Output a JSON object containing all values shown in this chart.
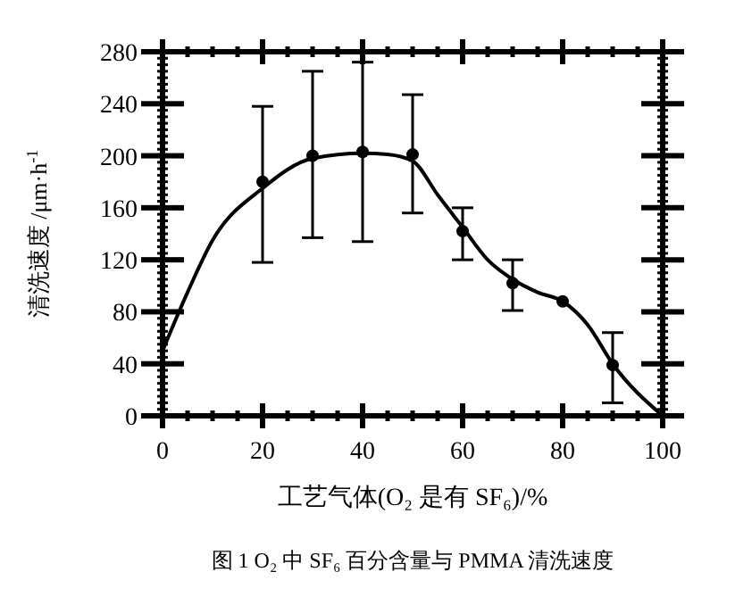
{
  "chart_data": {
    "type": "scatter",
    "title": "图 1 O₂ 中 SF₆ 百分含量与 PMMA 清洗速度",
    "xlabel": "工艺气体(O₂ 是有 SF₆)/%",
    "ylabel": "清洗速度 /μm·h$^{-1}$",
    "xlim": [
      0,
      100
    ],
    "xticks": [
      0,
      20,
      40,
      60,
      80,
      100
    ],
    "ylim": [
      0,
      280
    ],
    "yticks": [
      0,
      40,
      80,
      120,
      160,
      200,
      240,
      280
    ],
    "grid": false,
    "series": [
      {
        "color": "#000000",
        "marker": "circle",
        "x": [
          20,
          30,
          40,
          50,
          60,
          70,
          80,
          90
        ],
        "values": [
          180,
          200,
          203,
          201,
          142,
          102,
          88,
          39
        ],
        "errors": [
          [
            118,
            238
          ],
          [
            137,
            265
          ],
          [
            134,
            272
          ],
          [
            156,
            247
          ],
          [
            120,
            160
          ],
          [
            81,
            120
          ],
          null,
          [
            10,
            64
          ]
        ]
      },
      {
        "type": "line",
        "color": "#000000",
        "marker": "none",
        "line_style": "solid",
        "x": [
          0,
          5,
          10,
          20,
          30,
          40,
          45,
          50,
          55,
          60,
          65,
          70,
          75,
          80,
          85,
          90,
          100
        ],
        "values": [
          50,
          95,
          135,
          175,
          198,
          202,
          201,
          196,
          170,
          145,
          120,
          105,
          95,
          88,
          70,
          40,
          0
        ]
      }
    ]
  }
}
